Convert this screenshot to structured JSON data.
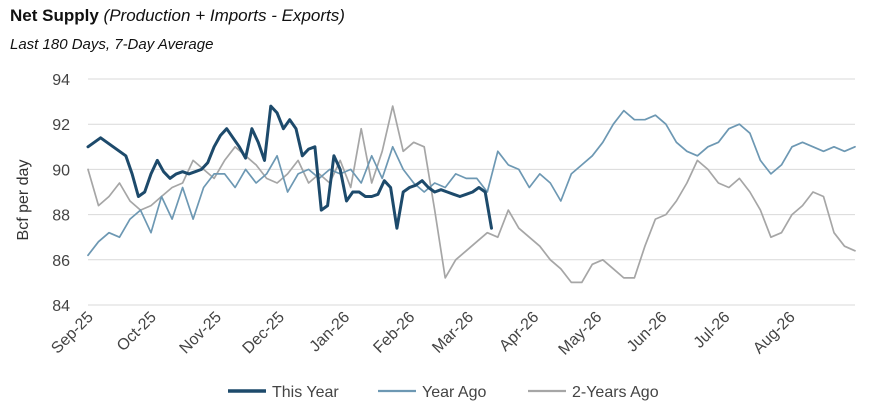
{
  "chart_data": {
    "type": "line",
    "title": "Net Supply",
    "title_suffix": "(Production + Imports - Exports)",
    "subtitle": "Last 180 Days, 7-Day Average",
    "ylabel": "Bcf per day",
    "xlabel": "",
    "ylim": [
      84,
      94
    ],
    "yticks": [
      84,
      86,
      88,
      90,
      92,
      94
    ],
    "grid": true,
    "x_domain": [
      0,
      365
    ],
    "x_unit": "days since Sep 1",
    "categories": [
      "Sep-25",
      "Oct-25",
      "Nov-25",
      "Dec-25",
      "Jan-26",
      "Feb-26",
      "Mar-26",
      "Apr-26",
      "May-26",
      "Jun-26",
      "Jul-26",
      "Aug-26"
    ],
    "category_day": [
      0,
      30,
      61,
      91,
      122,
      153,
      181,
      212,
      242,
      273,
      303,
      334
    ],
    "legend_position": "bottom",
    "series": [
      {
        "name": "This Year",
        "color": "#1d4a6b",
        "width": 3,
        "x": [
          0,
          3,
          6,
          9,
          12,
          15,
          18,
          21,
          24,
          27,
          30,
          33,
          36,
          39,
          42,
          45,
          48,
          51,
          54,
          57,
          60,
          63,
          66,
          69,
          72,
          75,
          78,
          81,
          84,
          87,
          90,
          93,
          96,
          99,
          102,
          105,
          108,
          111,
          114,
          117,
          120,
          123,
          126,
          129,
          132,
          135,
          138,
          141,
          144,
          147,
          150,
          153,
          156,
          159,
          162,
          165,
          168,
          171,
          174,
          177,
          180,
          183,
          186,
          189,
          192
        ],
        "y": [
          91.0,
          91.2,
          91.4,
          91.2,
          91.0,
          90.8,
          90.6,
          89.8,
          88.8,
          89.0,
          89.8,
          90.4,
          89.9,
          89.6,
          89.8,
          89.9,
          89.8,
          89.9,
          90.0,
          90.3,
          91.0,
          91.5,
          91.8,
          91.4,
          91.0,
          90.5,
          91.8,
          91.2,
          90.4,
          92.8,
          92.5,
          91.8,
          92.2,
          91.8,
          90.6,
          90.9,
          91.0,
          88.2,
          88.4,
          90.6,
          90.0,
          88.6,
          89.0,
          89.0,
          88.8,
          88.8,
          88.9,
          89.5,
          89.2,
          87.4,
          89.0,
          89.2,
          89.3,
          89.5,
          89.2,
          89.0,
          89.1,
          89.0,
          88.9,
          88.8,
          88.9,
          89.0,
          89.2,
          89.0,
          87.4
        ],
        "x_note": "trimmed"
      },
      {
        "name": "Year Ago",
        "color": "#6d98b3",
        "width": 1.7,
        "x": [
          0,
          5,
          10,
          15,
          20,
          25,
          30,
          35,
          40,
          45,
          50,
          55,
          60,
          65,
          70,
          75,
          80,
          85,
          90,
          95,
          100,
          105,
          110,
          115,
          120,
          125,
          130,
          135,
          140,
          145,
          150,
          155,
          160,
          165,
          170,
          175,
          180,
          185,
          190,
          195,
          200,
          205,
          210,
          215,
          220,
          225,
          230,
          235,
          240,
          245,
          250,
          255,
          260,
          265,
          270,
          275,
          280,
          285,
          290,
          295,
          300,
          305,
          310,
          315,
          320,
          325,
          330,
          335,
          340,
          345,
          350,
          355,
          360,
          365
        ],
        "y": [
          86.2,
          86.8,
          87.2,
          87.0,
          87.8,
          88.2,
          87.2,
          88.8,
          87.8,
          89.2,
          87.8,
          89.2,
          89.8,
          89.8,
          89.2,
          90.0,
          89.4,
          89.8,
          90.6,
          89.0,
          89.8,
          90.0,
          89.6,
          90.0,
          89.8,
          90.0,
          89.4,
          90.6,
          89.6,
          91.0,
          90.0,
          89.4,
          89.0,
          89.4,
          89.2,
          89.8,
          89.6,
          89.6,
          89.0,
          90.8,
          90.2,
          90.0,
          89.2,
          89.8,
          89.4,
          88.6,
          89.8,
          90.2,
          90.6,
          91.2,
          92.0,
          92.6,
          92.2,
          92.2,
          92.4,
          92.0,
          91.2,
          90.8,
          90.6,
          91.0,
          91.2,
          91.8,
          92.0,
          91.6,
          90.4,
          89.8,
          90.2,
          91.0,
          91.2,
          91.0,
          90.8,
          91.0,
          90.8,
          91.0
        ]
      },
      {
        "name": "2-Years Ago",
        "color": "#a6a6a6",
        "width": 1.7,
        "x": [
          0,
          5,
          10,
          15,
          20,
          25,
          30,
          35,
          40,
          45,
          50,
          55,
          60,
          65,
          70,
          75,
          80,
          85,
          90,
          95,
          100,
          105,
          110,
          115,
          120,
          125,
          130,
          135,
          140,
          145,
          150,
          155,
          160,
          165,
          170,
          175,
          180,
          185,
          190,
          195,
          200,
          205,
          210,
          215,
          220,
          225,
          230,
          235,
          240,
          245,
          250,
          255,
          260,
          265,
          270,
          275,
          280,
          285,
          290,
          295,
          300,
          305,
          310,
          315,
          320,
          325,
          330,
          335,
          340,
          345,
          350,
          355,
          360,
          365
        ],
        "y": [
          90.0,
          88.4,
          88.8,
          89.4,
          88.6,
          88.2,
          88.4,
          88.8,
          89.2,
          89.4,
          90.4,
          90.0,
          89.6,
          90.4,
          91.0,
          90.6,
          90.2,
          89.6,
          89.4,
          89.8,
          90.4,
          89.4,
          89.8,
          89.4,
          90.4,
          89.2,
          91.8,
          89.4,
          90.8,
          92.8,
          90.8,
          91.2,
          91.0,
          88.2,
          85.2,
          86.0,
          86.4,
          86.8,
          87.2,
          87.0,
          88.2,
          87.4,
          87.0,
          86.6,
          86.0,
          85.6,
          85.0,
          85.0,
          85.8,
          86.0,
          85.6,
          85.2,
          85.2,
          86.6,
          87.8,
          88.0,
          88.6,
          89.4,
          90.4,
          90.0,
          89.4,
          89.2,
          89.6,
          89.0,
          88.2,
          87.0,
          87.2,
          88.0,
          88.4,
          89.0,
          88.8,
          87.2,
          86.6,
          86.4
        ]
      }
    ],
    "legend": [
      "This Year",
      "Year Ago",
      "2-Years Ago"
    ]
  }
}
